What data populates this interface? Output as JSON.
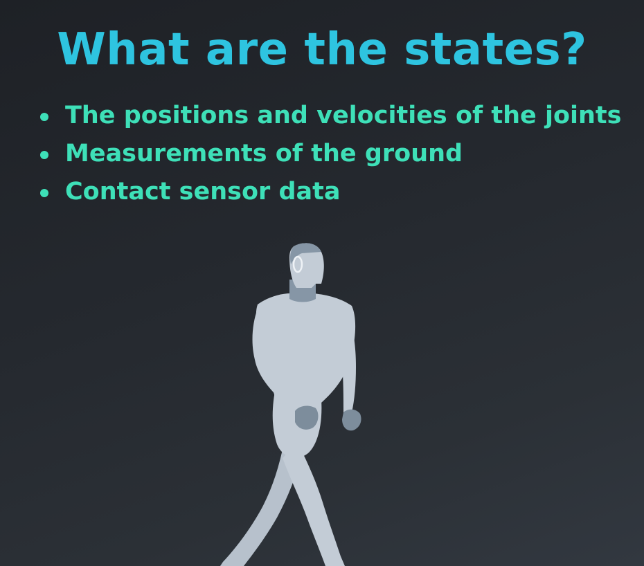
{
  "slide": {
    "title": "What are the states?",
    "bullets": [
      "The positions and velocities of the joints",
      "Measurements of the ground",
      "Contact sensor data"
    ]
  },
  "colors": {
    "title": "#2ec4e0",
    "bullets": "#3ee0b8",
    "figure_body": "#c3ccd6",
    "figure_accent": "#7d8d9c",
    "background": "#23272d"
  },
  "illustration": {
    "icon": "walking-humanoid-robot-icon"
  }
}
